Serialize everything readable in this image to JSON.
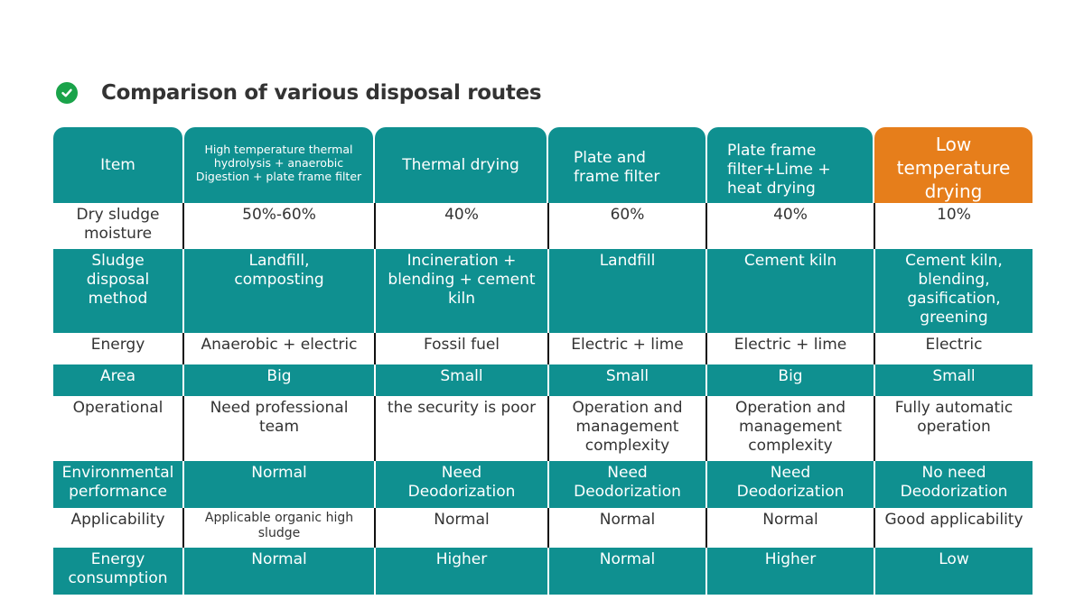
{
  "title": "Comparison of various disposal routes",
  "colors": {
    "teal": "#0f9090",
    "highlight": "#e67e1b",
    "check": "#1aa34a"
  },
  "header": [
    "Item",
    "High temperature thermal\nhydrolysis + anaerobic\nDigestion + plate frame filter",
    "Thermal drying",
    "Plate and\nframe filter",
    "Plate frame\nfilter+Lime +\nheat drying",
    "Low\ntemperature\ndrying"
  ],
  "rows": [
    [
      "Dry sludge\nmoisture",
      "50%-60%",
      "40%",
      "60%",
      "40%",
      "10%"
    ],
    [
      "Sludge\ndisposal\nmethod",
      "Landfill,\ncomposting",
      "Incineration +\nblending + cement\nkiln",
      "Landfill",
      "Cement kiln",
      "Cement kiln,\nblending,\ngasification,\ngreening"
    ],
    [
      "Energy",
      "Anaerobic + electric",
      "Fossil fuel",
      "Electric + lime",
      "Electric + lime",
      "Electric"
    ],
    [
      "Area",
      "Big",
      "Small",
      "Small",
      "Big",
      "Small"
    ],
    [
      "Operational",
      "Need professional\nteam",
      "the security is poor",
      "Operation and\nmanagement\ncomplexity",
      "Operation and\nmanagement\ncomplexity",
      "Fully automatic\noperation"
    ],
    [
      "Environmental\nperformance",
      "Normal",
      "Need\nDeodorization",
      "Need\nDeodorization",
      "Need\nDeodorization",
      "No need\nDeodorization"
    ],
    [
      "Applicability",
      "Applicable organic high\nsludge",
      "Normal",
      "Normal",
      "Normal",
      "Good applicability"
    ],
    [
      "Energy\nconsumption",
      "Normal",
      "Higher",
      "Normal",
      "Higher",
      "Low"
    ]
  ]
}
